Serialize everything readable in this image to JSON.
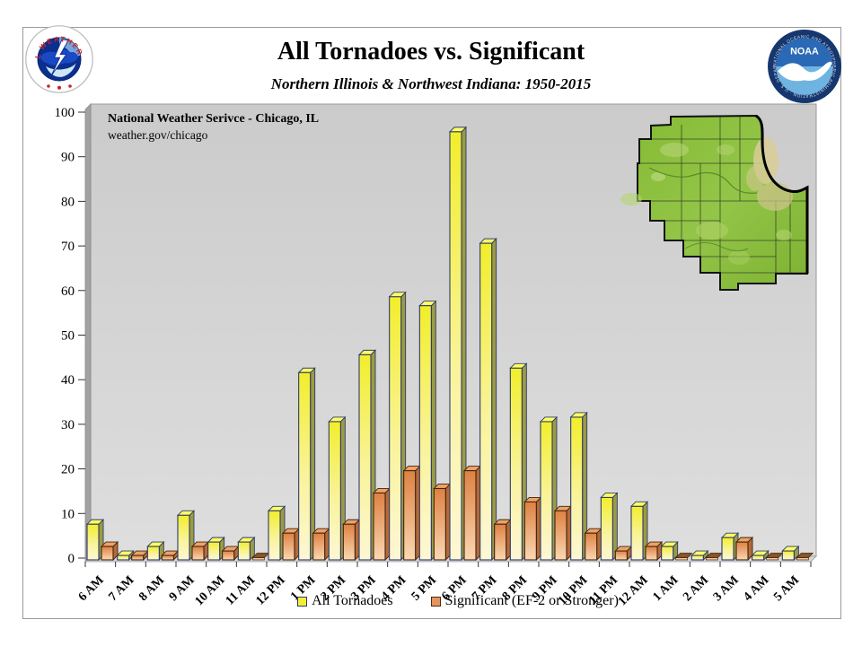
{
  "page": {
    "title": "All Tornadoes vs. Significant",
    "subtitle": "Northern Illinois & Northwest Indiana:  1950-2015"
  },
  "logos": {
    "nws": {
      "ring_text": "NATIONAL WEATHER SERVICE"
    },
    "noaa": {
      "center_text": "NOAA",
      "ring_text": "NATIONAL OCEANIC AND ATMOSPHERIC ADMINISTRATION · U.S. DEPARTMENT OF COMMERCE"
    }
  },
  "annotation": {
    "line1": "National Weather Serivce - Chicago, IL",
    "line2": "weather.gov/chicago"
  },
  "legend": {
    "items": [
      {
        "label": "All Tornadoes",
        "color": "#f4ee3a"
      },
      {
        "label": "Significant (EF-2 or Stronger)",
        "color": "#e6945e"
      }
    ],
    "position": "bottom"
  },
  "colors": {
    "bar_all_top": "#f2ee2b",
    "bar_all_bottom": "#fdf7d6",
    "bar_all_border": "#2e3a68",
    "bar_sig_top": "#de8142",
    "bar_sig_bottom": "#fad8b4",
    "bar_sig_border": "#402410",
    "plot_background": "#d0d0d0",
    "map_green": "#8cbf3f",
    "nws_red": "#cc2229",
    "noaa_blue": "#1d4f91"
  },
  "chart_data": {
    "type": "bar",
    "title": "All Tornadoes vs. Significant",
    "subtitle": "Northern Illinois & Northwest Indiana: 1950-2015",
    "categories": [
      "6 AM",
      "7 AM",
      "8 AM",
      "9 AM",
      "10 AM",
      "11 AM",
      "12 PM",
      "1 PM",
      "2 PM",
      "3 PM",
      "4 PM",
      "5 PM",
      "6 PM",
      "7 PM",
      "8 PM",
      "9 PM",
      "10 PM",
      "11 PM",
      "12 AM",
      "1 AM",
      "2 AM",
      "3 AM",
      "4 AM",
      "5 AM"
    ],
    "series": [
      {
        "name": "All Tornadoes",
        "color": "#f4ee3a",
        "values": [
          8,
          1,
          3,
          10,
          4,
          4,
          11,
          42,
          31,
          46,
          59,
          57,
          96,
          71,
          43,
          31,
          32,
          14,
          12,
          3,
          1,
          5,
          1,
          2
        ]
      },
      {
        "name": "Significant (EF-2 or Stronger)",
        "color": "#e6945e",
        "values": [
          3,
          1,
          1,
          3,
          2,
          0,
          6,
          6,
          8,
          15,
          20,
          16,
          20,
          8,
          13,
          11,
          6,
          2,
          3,
          0,
          0,
          4,
          0,
          0
        ]
      }
    ],
    "ylim": [
      0,
      100
    ],
    "ytick_step": 10,
    "grid": false,
    "legend_position": "bottom"
  }
}
